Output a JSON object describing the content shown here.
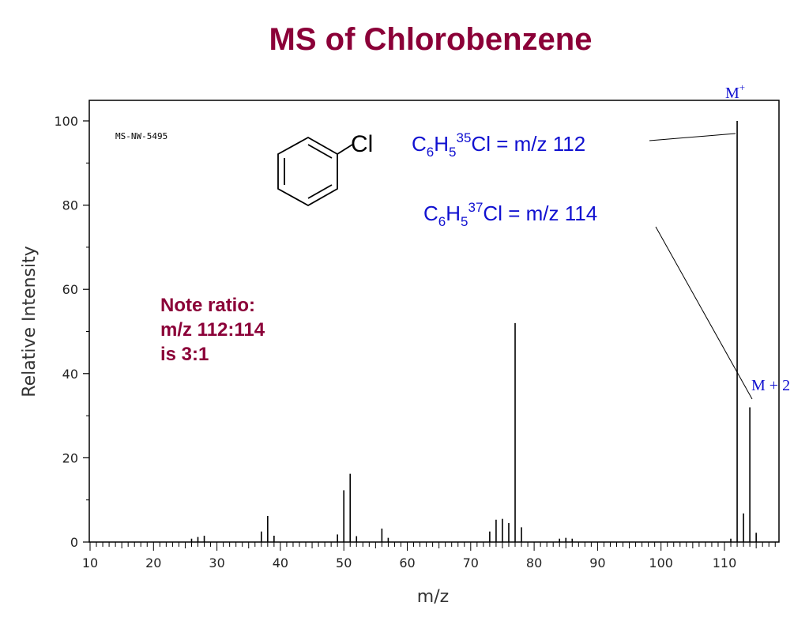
{
  "title": "MS of Chlorobenzene",
  "colors": {
    "title": "#8b0038",
    "note": "#8b0038",
    "annotation": "#1010d0",
    "axis": "#000000"
  },
  "chart_data": {
    "type": "bar",
    "title": "MS of Chlorobenzene",
    "xlabel": "m/z",
    "ylabel": "Relative Intensity",
    "xlim": [
      10,
      118
    ],
    "ylim": [
      0,
      100
    ],
    "xticks": [
      10,
      20,
      30,
      40,
      50,
      60,
      70,
      80,
      90,
      100,
      110
    ],
    "yticks": [
      0,
      20,
      40,
      60,
      80,
      100
    ],
    "reference_id": "MS-NW-5495",
    "peaks": [
      {
        "x": 26,
        "y": 0.8
      },
      {
        "x": 27,
        "y": 1.2
      },
      {
        "x": 28,
        "y": 1.5
      },
      {
        "x": 37,
        "y": 2.5
      },
      {
        "x": 38,
        "y": 6.2
      },
      {
        "x": 39,
        "y": 1.5
      },
      {
        "x": 49,
        "y": 1.8
      },
      {
        "x": 50,
        "y": 12.3
      },
      {
        "x": 51,
        "y": 16.2
      },
      {
        "x": 52,
        "y": 1.4
      },
      {
        "x": 56,
        "y": 3.2
      },
      {
        "x": 57,
        "y": 1.0
      },
      {
        "x": 73,
        "y": 2.5
      },
      {
        "x": 74,
        "y": 5.3
      },
      {
        "x": 75,
        "y": 5.5
      },
      {
        "x": 76,
        "y": 4.5
      },
      {
        "x": 77,
        "y": 52.0
      },
      {
        "x": 78,
        "y": 3.5
      },
      {
        "x": 84,
        "y": 0.8
      },
      {
        "x": 85,
        "y": 1.0
      },
      {
        "x": 86,
        "y": 0.8
      },
      {
        "x": 111,
        "y": 0.8
      },
      {
        "x": 112,
        "y": 100.0
      },
      {
        "x": 113,
        "y": 6.8
      },
      {
        "x": 114,
        "y": 32.0
      },
      {
        "x": 115,
        "y": 2.2
      }
    ]
  },
  "annotations": {
    "m_plus": {
      "base": "M",
      "sup": "+"
    },
    "m_plus_2": "M + 2",
    "formula_112": {
      "c": "C",
      "c_sub": "6",
      "h": "H",
      "h_sub": "5",
      "iso": "35",
      "rest": "Cl = m/z 112"
    },
    "formula_114": {
      "c": "C",
      "c_sub": "6",
      "h": "H",
      "h_sub": "5",
      "iso": "37",
      "rest": "Cl = m/z 114"
    },
    "note_lines": [
      "Note ratio:",
      "m/z 112:114",
      "is 3:1"
    ],
    "structure_label": "Cl"
  }
}
